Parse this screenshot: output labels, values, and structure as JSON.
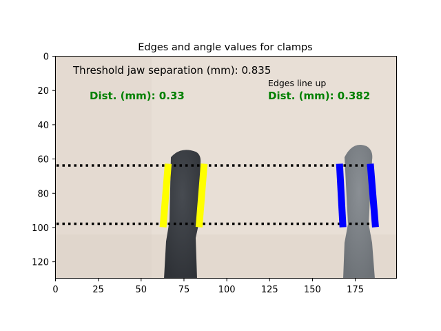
{
  "chart_data": {
    "type": "image_annotation",
    "title": "Edges and angle values for clamps",
    "xlim": [
      0,
      199.5
    ],
    "ylim": [
      130,
      0
    ],
    "x_ticks": [
      0,
      25,
      50,
      75,
      100,
      125,
      150,
      175
    ],
    "y_ticks": [
      0,
      20,
      40,
      60,
      80,
      100,
      120
    ],
    "background": {
      "image": "photograph of two clamp jaws",
      "colors": {
        "surface": "#e8dfd6",
        "left_jaw": "#3f4349",
        "right_jaw": "#7c8186"
      }
    },
    "guide_lines": [
      {
        "y": 64,
        "x_start": 0,
        "x_end": 185,
        "style": "dotted",
        "color": "#000000"
      },
      {
        "y": 98,
        "x_start": 0,
        "x_end": 185,
        "style": "dotted",
        "color": "#000000"
      }
    ],
    "edge_lines": [
      {
        "clamp": "left",
        "color": "#ffff00",
        "points": [
          [
            66,
            63
          ],
          [
            63,
            100
          ]
        ]
      },
      {
        "clamp": "left",
        "color": "#ffff00",
        "points": [
          [
            87,
            63
          ],
          [
            84,
            100
          ]
        ]
      },
      {
        "clamp": "right",
        "color": "#0000ff",
        "points": [
          [
            166,
            63
          ],
          [
            168,
            100
          ]
        ]
      },
      {
        "clamp": "right",
        "color": "#0000ff",
        "points": [
          [
            184,
            63
          ],
          [
            187,
            100
          ]
        ]
      }
    ],
    "annotations": [
      {
        "id": "threshold",
        "text": "Threshold jaw separation (mm): 0.835",
        "x": 10,
        "y": 8,
        "color": "#000000",
        "weight": "normal",
        "size": 13
      },
      {
        "id": "edges_line_up",
        "text": "Edges line up",
        "x": 124,
        "y": 16,
        "color": "#000000",
        "weight": "normal",
        "size": 10
      },
      {
        "id": "dist_left",
        "text": "Dist. (mm): 0.33",
        "x": 20,
        "y": 23,
        "color": "#008000",
        "weight": "bold",
        "size": 12
      },
      {
        "id": "dist_right",
        "text": "Dist. (mm): 0.382",
        "x": 124,
        "y": 23,
        "color": "#008000",
        "weight": "bold",
        "size": 12
      }
    ]
  }
}
